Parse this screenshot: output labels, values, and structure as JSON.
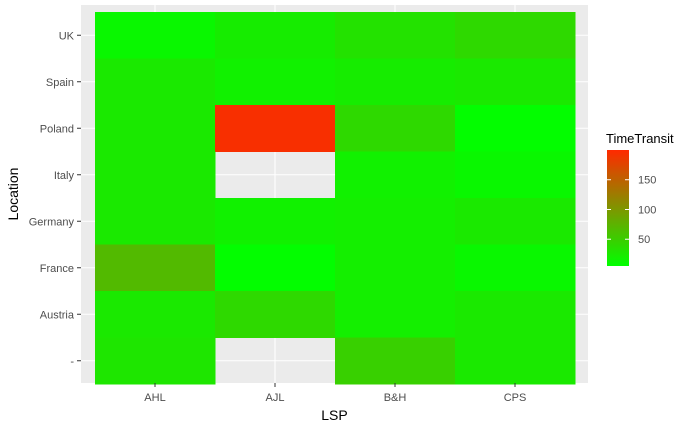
{
  "chart_data": {
    "type": "heatmap",
    "xlabel": "LSP",
    "ylabel": "Location",
    "x_categories": [
      "AHL",
      "AJL",
      "B&H",
      "CPS"
    ],
    "y_categories": [
      "",
      "Austria",
      "France",
      "Germany",
      "Italy",
      "Poland",
      "Spain",
      "UK"
    ],
    "y_tick_labels": [
      "-",
      "Austria",
      "France",
      "Germany",
      "Italy",
      "Poland",
      "Spain",
      "UK"
    ],
    "cells": [
      {
        "x": "AHL",
        "y": "UK",
        "value": 12
      },
      {
        "x": "AJL",
        "y": "UK",
        "value": 22
      },
      {
        "x": "B&H",
        "y": "UK",
        "value": 32
      },
      {
        "x": "CPS",
        "y": "UK",
        "value": 40
      },
      {
        "x": "AHL",
        "y": "Spain",
        "value": 25
      },
      {
        "x": "AJL",
        "y": "Spain",
        "value": 18
      },
      {
        "x": "B&H",
        "y": "Spain",
        "value": 22
      },
      {
        "x": "CPS",
        "y": "Spain",
        "value": 25
      },
      {
        "x": "AHL",
        "y": "Poland",
        "value": 25
      },
      {
        "x": "AJL",
        "y": "Poland",
        "value": 195
      },
      {
        "x": "B&H",
        "y": "Poland",
        "value": 40
      },
      {
        "x": "CPS",
        "y": "Poland",
        "value": 7
      },
      {
        "x": "AHL",
        "y": "Italy",
        "value": 25
      },
      {
        "x": "AJL",
        "y": "Italy",
        "value": null
      },
      {
        "x": "B&H",
        "y": "Italy",
        "value": 18
      },
      {
        "x": "CPS",
        "y": "Italy",
        "value": 12
      },
      {
        "x": "AHL",
        "y": "Germany",
        "value": 25
      },
      {
        "x": "AJL",
        "y": "Germany",
        "value": 18
      },
      {
        "x": "B&H",
        "y": "Germany",
        "value": 20
      },
      {
        "x": "CPS",
        "y": "Germany",
        "value": 25
      },
      {
        "x": "AHL",
        "y": "France",
        "value": 68
      },
      {
        "x": "AJL",
        "y": "France",
        "value": 7
      },
      {
        "x": "B&H",
        "y": "France",
        "value": 20
      },
      {
        "x": "CPS",
        "y": "France",
        "value": 12
      },
      {
        "x": "AHL",
        "y": "Austria",
        "value": 25
      },
      {
        "x": "AJL",
        "y": "Austria",
        "value": 40
      },
      {
        "x": "B&H",
        "y": "Austria",
        "value": 20
      },
      {
        "x": "CPS",
        "y": "Austria",
        "value": 25
      },
      {
        "x": "AHL",
        "y": "",
        "value": 28
      },
      {
        "x": "AJL",
        "y": "",
        "value": null
      },
      {
        "x": "B&H",
        "y": "",
        "value": 48
      },
      {
        "x": "CPS",
        "y": "",
        "value": 25
      }
    ],
    "color_scale": {
      "low_color": "#00ff00",
      "high_color": "#ff2a00",
      "limits": [
        5,
        200
      ],
      "breaks": [
        50,
        100,
        150
      ]
    },
    "legend": {
      "title": "TimeTransit",
      "position": "right",
      "labels": [
        "150",
        "100",
        "50"
      ]
    },
    "panel_background": "#ebebeb",
    "grid": true
  }
}
